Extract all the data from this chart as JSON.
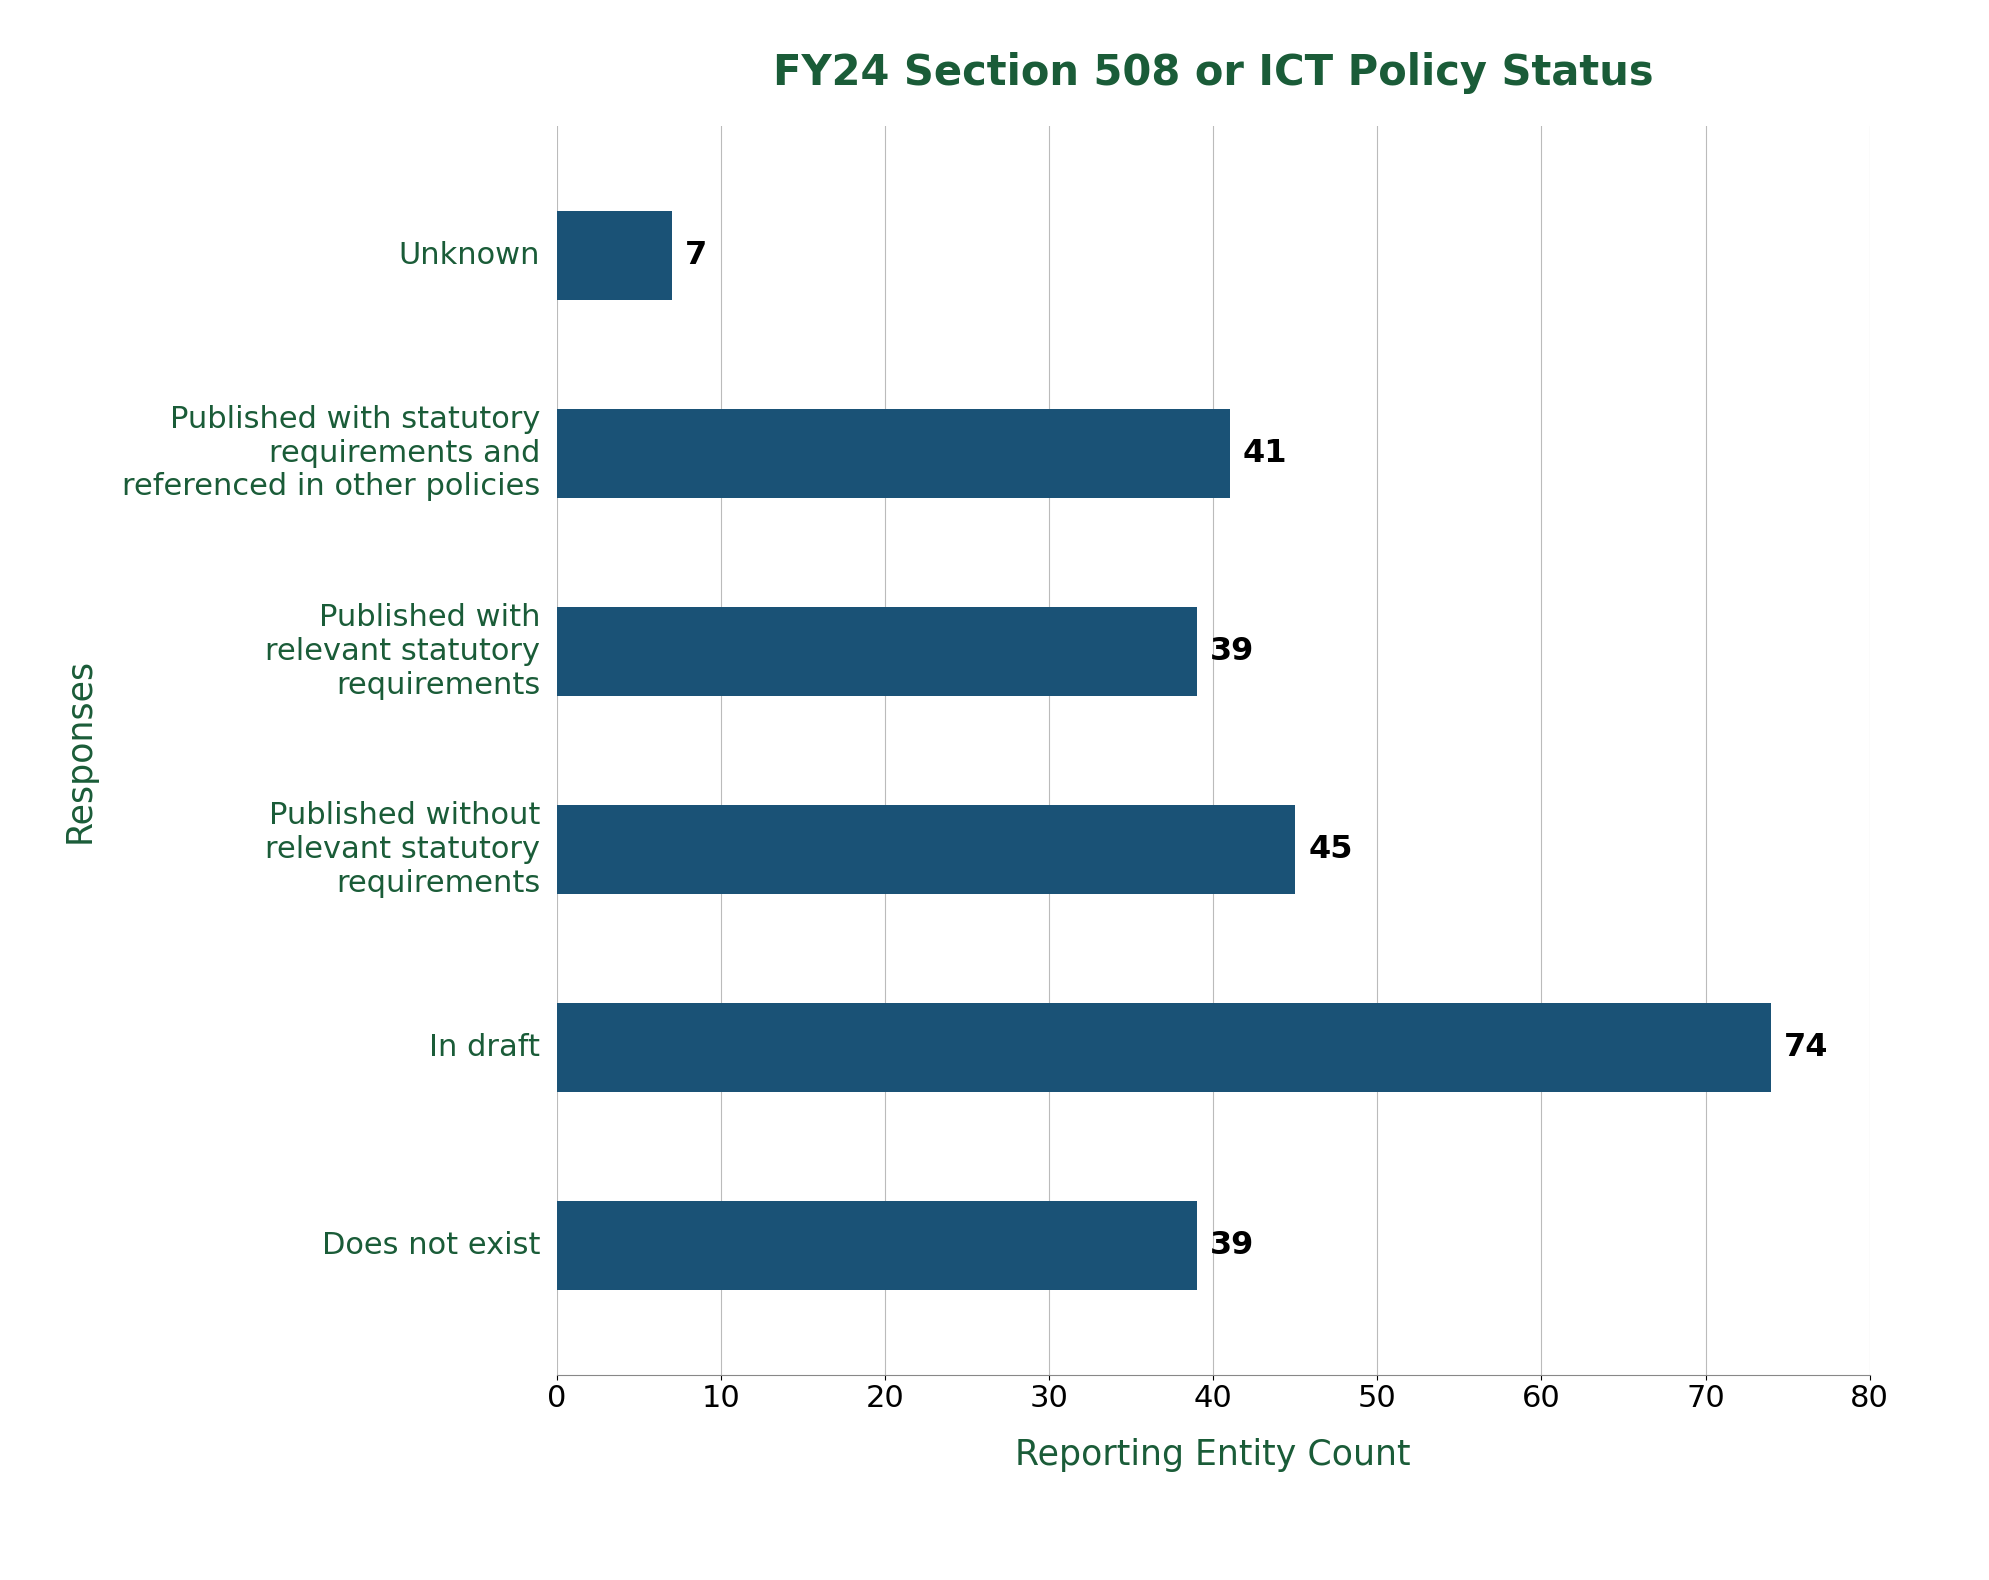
{
  "title": "FY24 Section 508 or ICT Policy Status",
  "xlabel": "Reporting Entity Count",
  "ylabel": "Responses",
  "categories": [
    "Does not exist",
    "In draft",
    "Published without\nrelevant statutory\nrequirements",
    "Published with\nrelevant statutory\nrequirements",
    "Published with statutory\nrequirements and\nreferenced in other policies",
    "Unknown"
  ],
  "values": [
    39,
    74,
    45,
    39,
    41,
    7
  ],
  "bar_color": "#1a5276",
  "xlim": [
    0,
    80
  ],
  "xticks": [
    0,
    10,
    20,
    30,
    40,
    50,
    60,
    70,
    80
  ],
  "title_color": "#1a5c38",
  "title_fontsize": 30,
  "label_fontsize": 22,
  "tick_fontsize": 22,
  "value_fontsize": 23,
  "xlabel_fontsize": 25,
  "ylabel_fontsize": 25,
  "bar_height": 0.45,
  "background_color": "#ffffff",
  "grid_color": "#bbbbbb",
  "ytick_color": "#1a5c38",
  "xlabel_color": "#1a5c38",
  "ylabel_color": "#1a5c38",
  "xtick_color": "#000000",
  "value_label_color": "#000000"
}
